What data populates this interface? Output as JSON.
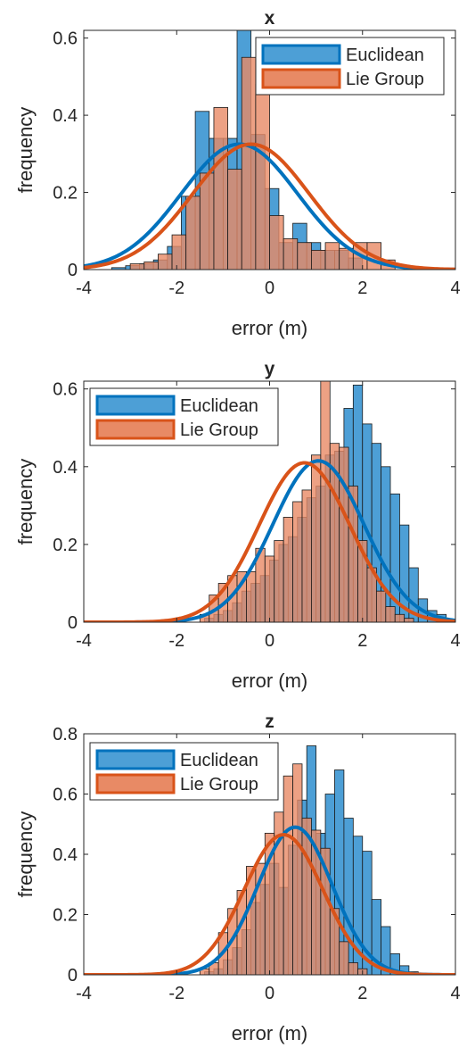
{
  "colors": {
    "euclidean": "#0072BD",
    "euclidean_fill": "#4D9FD6",
    "lie_group": "#D95319",
    "lie_group_fill": "#E88A65",
    "overlap_fill": "#9A5B4B"
  },
  "chart_data": [
    {
      "type": "bar",
      "title": "x",
      "xlabel": "error (m)",
      "ylabel": "frequency",
      "xlim": [
        -4,
        4
      ],
      "ylim": [
        0,
        0.62
      ],
      "xticks": [
        "-4",
        "-2",
        "0",
        "2",
        "4"
      ],
      "yticks": [
        {
          "v": 0,
          "label": "0"
        },
        {
          "v": 0.2,
          "label": "0.2"
        },
        {
          "v": 0.4,
          "label": "0.4"
        },
        {
          "v": 0.6,
          "label": "0.6"
        }
      ],
      "legend_position": "top-right",
      "series": [
        {
          "name": "Euclidean",
          "bin_width": 0.3,
          "bin_start": -3.4,
          "values": [
            0.005,
            0.01,
            0.015,
            0.025,
            0.06,
            0.19,
            0.41,
            0.34,
            0.34,
            0.65,
            0.35,
            0.21,
            0.07,
            0.12,
            0.07,
            0.05,
            0.05,
            0.03,
            0.0,
            0.0
          ]
        },
        {
          "name": "Lie Group",
          "bin_width": 0.3,
          "bin_start": -3.0,
          "values": [
            0.015,
            0.02,
            0.04,
            0.09,
            0.19,
            0.25,
            0.42,
            0.26,
            0.55,
            0.48,
            0.14,
            0.08,
            0.07,
            0.05,
            0.07,
            0.055,
            0.07,
            0.07,
            0.025,
            0.0
          ]
        }
      ],
      "fits": [
        {
          "name": "Euclidean",
          "mean": -0.65,
          "std": 1.25,
          "peak": 0.325
        },
        {
          "name": "Lie Group",
          "mean": -0.4,
          "std": 1.25,
          "peak": 0.325
        }
      ]
    },
    {
      "type": "bar",
      "title": "y",
      "xlabel": "error (m)",
      "ylabel": "frequency",
      "xlim": [
        -4,
        4
      ],
      "ylim": [
        0,
        0.62
      ],
      "xticks": [
        "-4",
        "-2",
        "0",
        "2",
        "4"
      ],
      "yticks": [
        {
          "v": 0,
          "label": "0"
        },
        {
          "v": 0.2,
          "label": "0.2"
        },
        {
          "v": 0.4,
          "label": "0.4"
        },
        {
          "v": 0.6,
          "label": "0.6"
        }
      ],
      "legend_position": "top-left",
      "series": [
        {
          "name": "Euclidean",
          "bin_width": 0.2,
          "bin_start": -1.4,
          "values": [
            0.01,
            0.02,
            0.03,
            0.05,
            0.08,
            0.1,
            0.12,
            0.16,
            0.2,
            0.22,
            0.27,
            0.32,
            0.35,
            0.43,
            0.44,
            0.55,
            0.61,
            0.51,
            0.46,
            0.4,
            0.33,
            0.25,
            0.14,
            0.06,
            0.03,
            0.02
          ]
        },
        {
          "name": "Lie Group",
          "bin_width": 0.2,
          "bin_start": -1.5,
          "values": [
            0.02,
            0.07,
            0.1,
            0.12,
            0.13,
            0.13,
            0.19,
            0.17,
            0.21,
            0.27,
            0.31,
            0.34,
            0.43,
            0.62,
            0.46,
            0.45,
            0.35,
            0.21,
            0.14,
            0.08,
            0.04,
            0.02,
            0.01
          ]
        }
      ],
      "fits": [
        {
          "name": "Euclidean",
          "mean": 1.05,
          "std": 0.98,
          "peak": 0.415
        },
        {
          "name": "Lie Group",
          "mean": 0.75,
          "std": 0.98,
          "peak": 0.41
        }
      ]
    },
    {
      "type": "bar",
      "title": "z",
      "xlabel": "error (m)",
      "ylabel": "frequency",
      "xlim": [
        -4,
        4
      ],
      "ylim": [
        0,
        0.8
      ],
      "xticks": [
        "-4",
        "-2",
        "0",
        "2",
        "4"
      ],
      "yticks": [
        {
          "v": 0,
          "label": "0"
        },
        {
          "v": 0.2,
          "label": "0.2"
        },
        {
          "v": 0.4,
          "label": "0.4"
        },
        {
          "v": 0.6,
          "label": "0.6"
        },
        {
          "v": 0.8,
          "label": "0.8"
        }
      ],
      "legend_position": "top-left",
      "series": [
        {
          "name": "Euclidean",
          "bin_width": 0.2,
          "bin_start": -1.4,
          "values": [
            0.01,
            0.02,
            0.05,
            0.09,
            0.15,
            0.24,
            0.3,
            0.37,
            0.29,
            0.43,
            0.58,
            0.76,
            0.47,
            0.6,
            0.68,
            0.52,
            0.46,
            0.41,
            0.25,
            0.16,
            0.07,
            0.03,
            0.01
          ]
        },
        {
          "name": "Lie Group",
          "bin_width": 0.2,
          "bin_start": -1.5,
          "values": [
            0.02,
            0.04,
            0.14,
            0.22,
            0.28,
            0.36,
            0.37,
            0.47,
            0.54,
            0.66,
            0.7,
            0.52,
            0.48,
            0.42,
            0.22,
            0.11,
            0.04,
            0.02
          ]
        }
      ],
      "fits": [
        {
          "name": "Euclidean",
          "mean": 0.55,
          "std": 0.8,
          "peak": 0.49
        },
        {
          "name": "Lie Group",
          "mean": 0.3,
          "std": 0.85,
          "peak": 0.465
        }
      ]
    }
  ]
}
